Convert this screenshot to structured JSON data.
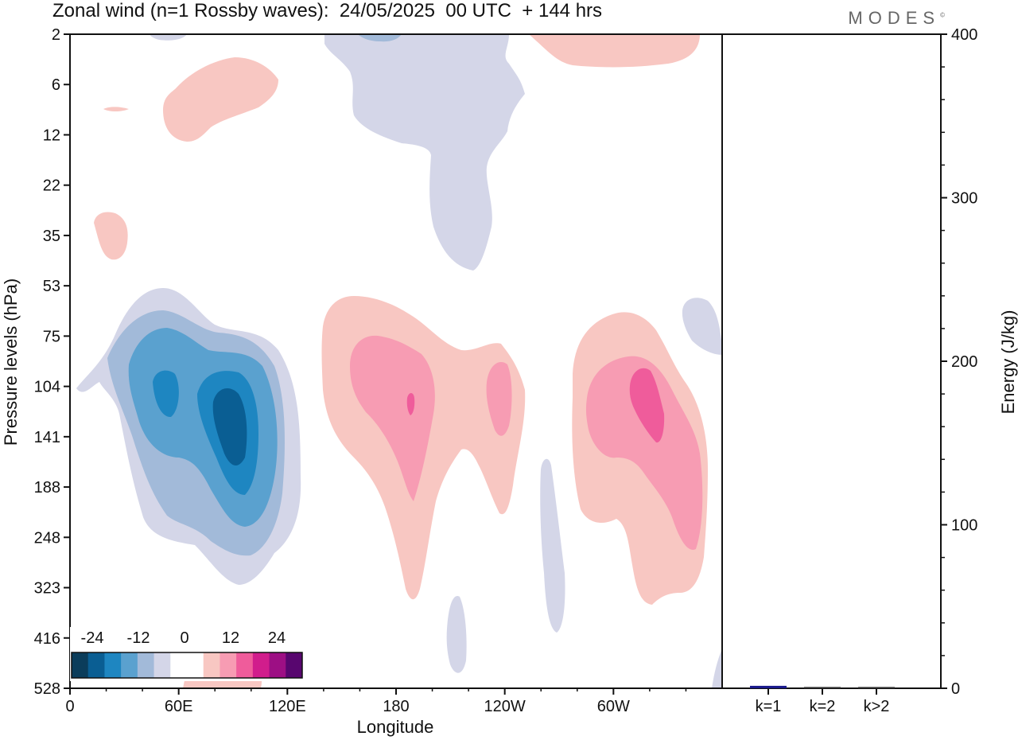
{
  "title": "Zonal wind (n=1 Rossby waves):  24/05/2025  00 UTC  + 144 hrs",
  "brand": "MODES",
  "brand_mark": "©",
  "chart_data": [
    {
      "type": "heatmap",
      "xlabel": "Longitude",
      "ylabel": "Pressure levels (hPa)",
      "x_ticks": [
        "0",
        "60E",
        "120E",
        "180",
        "120W",
        "60W"
      ],
      "x_tick_values": [
        0,
        60,
        120,
        180,
        240,
        300
      ],
      "xlim": [
        0,
        360
      ],
      "y_ticks": [
        "2",
        "6",
        "12",
        "22",
        "35",
        "53",
        "75",
        "104",
        "141",
        "188",
        "248",
        "323",
        "416",
        "528"
      ],
      "colorbar": {
        "tick_labels": [
          "-24",
          "-12",
          "0",
          "12",
          "24"
        ],
        "colors": [
          "#0b3d5b",
          "#0a5e93",
          "#1e86c1",
          "#5aa1cf",
          "#a2bad9",
          "#d4d6e8",
          "#ffffff",
          "#ffffff",
          "#f8c7c2",
          "#f79cb3",
          "#ef5c9b",
          "#d11d8c",
          "#9d0f84",
          "#58066f"
        ]
      },
      "features": [
        {
          "sign": "negative",
          "peak": -22,
          "lon": 90,
          "level_hPa": 130
        },
        {
          "sign": "negative",
          "peak": -16,
          "lon": 53,
          "level_hPa": 110
        },
        {
          "sign": "positive",
          "peak": 14,
          "lon": 187,
          "level_hPa": 118
        },
        {
          "sign": "positive",
          "peak": 14,
          "lon": 325,
          "level_hPa": 120
        },
        {
          "sign": "negative",
          "peak": -4,
          "lon": 230,
          "level_hPa": 4
        }
      ]
    },
    {
      "type": "bar",
      "ylabel": "Energy (J/kg)",
      "categories": [
        "k=1",
        "k=2",
        "k>2"
      ],
      "values": [
        1.5,
        0.8,
        0.8
      ],
      "ylim": [
        0,
        400
      ],
      "y_ticks": [
        "0",
        "100",
        "200",
        "300",
        "400"
      ],
      "colors": [
        "#1a1a8c",
        "#333333",
        "#333333"
      ]
    }
  ]
}
